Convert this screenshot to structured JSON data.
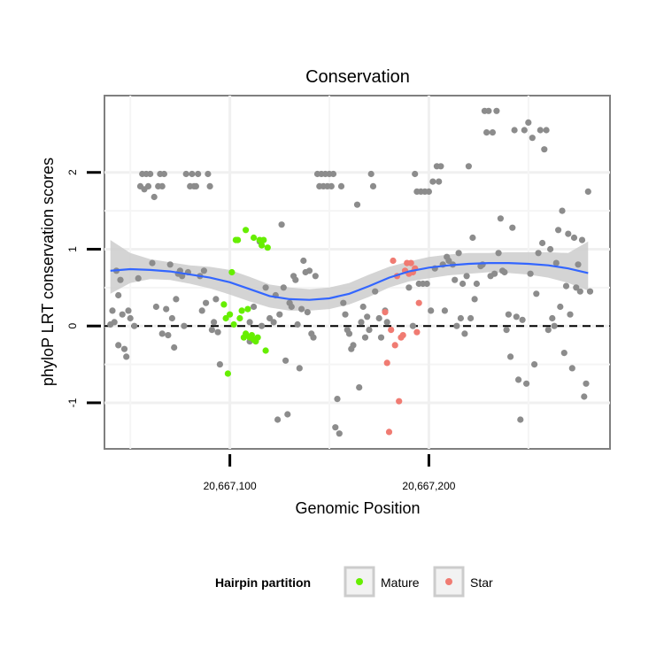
{
  "chart_data": {
    "type": "scatter",
    "title": "Conservation",
    "xlabel": "Genomic Position",
    "ylabel": "phyloP LRT conservation scores",
    "xlim": [
      20667037,
      20667291
    ],
    "ylim": [
      -1.6,
      3.0
    ],
    "x_ticks": [
      {
        "value": 20667100,
        "label": "20,667,100"
      },
      {
        "value": 20667200,
        "label": "20,667,200"
      }
    ],
    "y_ticks": [
      {
        "value": -1,
        "label": "-1"
      },
      {
        "value": 0,
        "label": "0"
      },
      {
        "value": 1,
        "label": "1"
      },
      {
        "value": 2,
        "label": "2"
      }
    ],
    "reference_line": {
      "y": 0,
      "style": "dashed"
    },
    "grid": true,
    "legend": {
      "title": "Hairpin partition",
      "position": "bottom",
      "entries": [
        {
          "label": "Mature",
          "color": "#66ee00"
        },
        {
          "label": "Star",
          "color": "#f07b72"
        }
      ]
    },
    "colors": {
      "other": "#8c8c8c",
      "mature": "#66ee00",
      "star": "#f07b72",
      "smooth": "#3366ff",
      "band": "#cccccc"
    },
    "series": [
      {
        "group": "other",
        "points": [
          [
            20667040,
            0.02
          ],
          [
            20667041,
            0.2
          ],
          [
            20667042,
            0.05
          ],
          [
            20667043,
            0.72
          ],
          [
            20667044,
            -0.25
          ],
          [
            20667044,
            0.4
          ],
          [
            20667045,
            0.6
          ],
          [
            20667046,
            0.15
          ],
          [
            20667047,
            -0.3
          ],
          [
            20667048,
            -0.4
          ],
          [
            20667049,
            0.2
          ],
          [
            20667050,
            0.1
          ],
          [
            20667052,
            0.0
          ],
          [
            20667054,
            0.62
          ],
          [
            20667055,
            1.82
          ],
          [
            20667056,
            1.98
          ],
          [
            20667057,
            1.78
          ],
          [
            20667058,
            1.98
          ],
          [
            20667059,
            1.82
          ],
          [
            20667060,
            1.98
          ],
          [
            20667061,
            0.82
          ],
          [
            20667062,
            1.68
          ],
          [
            20667063,
            0.25
          ],
          [
            20667064,
            1.82
          ],
          [
            20667065,
            1.98
          ],
          [
            20667066,
            1.82
          ],
          [
            20667066,
            -0.1
          ],
          [
            20667067,
            1.98
          ],
          [
            20667068,
            0.22
          ],
          [
            20667069,
            -0.12
          ],
          [
            20667070,
            0.8
          ],
          [
            20667071,
            0.1
          ],
          [
            20667072,
            -0.28
          ],
          [
            20667073,
            0.35
          ],
          [
            20667074,
            0.68
          ],
          [
            20667075,
            0.72
          ],
          [
            20667076,
            0.65
          ],
          [
            20667077,
            0.0
          ],
          [
            20667078,
            1.98
          ],
          [
            20667079,
            0.7
          ],
          [
            20667080,
            1.82
          ],
          [
            20667081,
            1.98
          ],
          [
            20667082,
            1.82
          ],
          [
            20667083,
            1.82
          ],
          [
            20667084,
            1.98
          ],
          [
            20667085,
            0.65
          ],
          [
            20667086,
            0.2
          ],
          [
            20667087,
            0.72
          ],
          [
            20667088,
            0.3
          ],
          [
            20667089,
            1.98
          ],
          [
            20667090,
            1.82
          ],
          [
            20667091,
            -0.05
          ],
          [
            20667092,
            0.05
          ],
          [
            20667093,
            0.35
          ],
          [
            20667094,
            -0.08
          ],
          [
            20667095,
            -0.5
          ],
          [
            20667110,
            -0.2
          ],
          [
            20667115,
            1.1
          ],
          [
            20667116,
            0.0
          ],
          [
            20667118,
            0.5
          ],
          [
            20667120,
            0.1
          ],
          [
            20667122,
            0.05
          ],
          [
            20667123,
            0.4
          ],
          [
            20667124,
            -1.22
          ],
          [
            20667125,
            0.15
          ],
          [
            20667126,
            1.32
          ],
          [
            20667127,
            0.5
          ],
          [
            20667128,
            -0.45
          ],
          [
            20667129,
            -1.15
          ],
          [
            20667130,
            0.3
          ],
          [
            20667131,
            0.25
          ],
          [
            20667132,
            0.65
          ],
          [
            20667133,
            0.6
          ],
          [
            20667134,
            0.02
          ],
          [
            20667135,
            -0.55
          ],
          [
            20667136,
            0.22
          ],
          [
            20667137,
            0.85
          ],
          [
            20667138,
            0.7
          ],
          [
            20667139,
            0.18
          ],
          [
            20667140,
            0.72
          ],
          [
            20667141,
            -0.1
          ],
          [
            20667142,
            -0.15
          ],
          [
            20667143,
            0.65
          ],
          [
            20667144,
            1.98
          ],
          [
            20667145,
            1.82
          ],
          [
            20667146,
            1.98
          ],
          [
            20667147,
            1.82
          ],
          [
            20667148,
            1.98
          ],
          [
            20667149,
            1.82
          ],
          [
            20667150,
            1.98
          ],
          [
            20667151,
            1.82
          ],
          [
            20667152,
            1.98
          ],
          [
            20667153,
            -1.32
          ],
          [
            20667154,
            -0.95
          ],
          [
            20667155,
            -1.4
          ],
          [
            20667156,
            1.82
          ],
          [
            20667157,
            0.3
          ],
          [
            20667158,
            0.15
          ],
          [
            20667159,
            -0.05
          ],
          [
            20667160,
            -0.1
          ],
          [
            20667161,
            -0.3
          ],
          [
            20667162,
            -0.25
          ],
          [
            20667164,
            1.58
          ],
          [
            20667165,
            -0.8
          ],
          [
            20667166,
            0.05
          ],
          [
            20667167,
            0.25
          ],
          [
            20667168,
            -0.15
          ],
          [
            20667169,
            0.12
          ],
          [
            20667170,
            -0.05
          ],
          [
            20667171,
            1.98
          ],
          [
            20667172,
            1.82
          ],
          [
            20667173,
            0.45
          ],
          [
            20667175,
            0.1
          ],
          [
            20667176,
            -0.15
          ],
          [
            20667178,
            0.2
          ],
          [
            20667179,
            0.05
          ],
          [
            20667190,
            0.5
          ],
          [
            20667192,
            0.0
          ],
          [
            20667193,
            1.98
          ],
          [
            20667194,
            1.75
          ],
          [
            20667195,
            0.55
          ],
          [
            20667196,
            1.75
          ],
          [
            20667197,
            0.55
          ],
          [
            20667198,
            1.75
          ],
          [
            20667199,
            0.55
          ],
          [
            20667200,
            1.75
          ],
          [
            20667201,
            0.2
          ],
          [
            20667202,
            1.88
          ],
          [
            20667203,
            0.75
          ],
          [
            20667204,
            2.08
          ],
          [
            20667205,
            1.88
          ],
          [
            20667206,
            2.08
          ],
          [
            20667207,
            0.8
          ],
          [
            20667208,
            0.2
          ],
          [
            20667209,
            0.9
          ],
          [
            20667210,
            0.85
          ],
          [
            20667212,
            0.8
          ],
          [
            20667213,
            0.6
          ],
          [
            20667214,
            0.0
          ],
          [
            20667215,
            0.95
          ],
          [
            20667216,
            0.1
          ],
          [
            20667217,
            0.55
          ],
          [
            20667218,
            -0.1
          ],
          [
            20667219,
            0.65
          ],
          [
            20667220,
            2.08
          ],
          [
            20667221,
            0.1
          ],
          [
            20667222,
            1.15
          ],
          [
            20667223,
            0.35
          ],
          [
            20667224,
            0.55
          ],
          [
            20667226,
            0.78
          ],
          [
            20667227,
            0.8
          ],
          [
            20667228,
            2.8
          ],
          [
            20667229,
            2.52
          ],
          [
            20667230,
            2.8
          ],
          [
            20667231,
            0.65
          ],
          [
            20667232,
            2.52
          ],
          [
            20667233,
            0.68
          ],
          [
            20667234,
            2.8
          ],
          [
            20667235,
            0.95
          ],
          [
            20667236,
            1.4
          ],
          [
            20667237,
            0.72
          ],
          [
            20667238,
            0.7
          ],
          [
            20667239,
            -0.05
          ],
          [
            20667240,
            0.15
          ],
          [
            20667241,
            -0.4
          ],
          [
            20667242,
            1.28
          ],
          [
            20667243,
            2.55
          ],
          [
            20667244,
            0.12
          ],
          [
            20667245,
            -0.7
          ],
          [
            20667246,
            -1.22
          ],
          [
            20667247,
            0.08
          ],
          [
            20667248,
            2.55
          ],
          [
            20667249,
            -0.75
          ],
          [
            20667250,
            2.65
          ],
          [
            20667251,
            0.68
          ],
          [
            20667252,
            2.45
          ],
          [
            20667253,
            -0.5
          ],
          [
            20667254,
            0.42
          ],
          [
            20667255,
            0.95
          ],
          [
            20667256,
            2.55
          ],
          [
            20667257,
            1.08
          ],
          [
            20667258,
            2.3
          ],
          [
            20667259,
            2.55
          ],
          [
            20667260,
            -0.05
          ],
          [
            20667261,
            1.0
          ],
          [
            20667262,
            0.1
          ],
          [
            20667263,
            0.0
          ],
          [
            20667264,
            0.82
          ],
          [
            20667265,
            1.25
          ],
          [
            20667266,
            0.25
          ],
          [
            20667267,
            1.5
          ],
          [
            20667268,
            -0.35
          ],
          [
            20667269,
            0.52
          ],
          [
            20667270,
            1.2
          ],
          [
            20667271,
            0.15
          ],
          [
            20667272,
            -0.55
          ],
          [
            20667273,
            1.15
          ],
          [
            20667274,
            0.5
          ],
          [
            20667275,
            0.8
          ],
          [
            20667276,
            0.45
          ],
          [
            20667277,
            1.12
          ],
          [
            20667278,
            -0.92
          ],
          [
            20667279,
            -0.75
          ],
          [
            20667280,
            1.75
          ],
          [
            20667281,
            0.45
          ],
          [
            20667110,
            0.05
          ],
          [
            20667112,
            0.25
          ]
        ]
      },
      {
        "group": "mature",
        "points": [
          [
            20667097,
            0.28
          ],
          [
            20667098,
            0.1
          ],
          [
            20667099,
            -0.62
          ],
          [
            20667100,
            0.15
          ],
          [
            20667101,
            0.7
          ],
          [
            20667102,
            0.02
          ],
          [
            20667103,
            1.12
          ],
          [
            20667104,
            1.12
          ],
          [
            20667105,
            0.1
          ],
          [
            20667106,
            0.2
          ],
          [
            20667107,
            -0.15
          ],
          [
            20667108,
            1.25
          ],
          [
            20667109,
            0.22
          ],
          [
            20667110,
            -0.15
          ],
          [
            20667111,
            -0.12
          ],
          [
            20667112,
            1.15
          ],
          [
            20667113,
            -0.2
          ],
          [
            20667114,
            -0.15
          ],
          [
            20667115,
            1.12
          ],
          [
            20667116,
            1.05
          ],
          [
            20667117,
            1.12
          ],
          [
            20667118,
            -0.32
          ],
          [
            20667119,
            1.02
          ],
          [
            20667108,
            -0.1
          ],
          [
            20667112,
            -0.18
          ]
        ]
      },
      {
        "group": "star",
        "points": [
          [
            20667178,
            0.18
          ],
          [
            20667179,
            -0.48
          ],
          [
            20667180,
            -1.38
          ],
          [
            20667181,
            -0.05
          ],
          [
            20667182,
            0.85
          ],
          [
            20667183,
            -0.25
          ],
          [
            20667184,
            0.65
          ],
          [
            20667185,
            -0.98
          ],
          [
            20667186,
            -0.15
          ],
          [
            20667187,
            -0.12
          ],
          [
            20667188,
            0.72
          ],
          [
            20667189,
            0.82
          ],
          [
            20667190,
            0.68
          ],
          [
            20667191,
            0.82
          ],
          [
            20667192,
            0.7
          ],
          [
            20667193,
            0.75
          ],
          [
            20667194,
            -0.08
          ],
          [
            20667195,
            0.3
          ]
        ]
      }
    ],
    "smooth": {
      "x": [
        20667040,
        20667050,
        20667060,
        20667070,
        20667080,
        20667090,
        20667100,
        20667110,
        20667120,
        20667130,
        20667140,
        20667150,
        20667160,
        20667170,
        20667180,
        20667190,
        20667200,
        20667210,
        20667220,
        20667230,
        20667240,
        20667250,
        20667260,
        20667270,
        20667280
      ],
      "y": [
        0.72,
        0.74,
        0.73,
        0.71,
        0.67,
        0.63,
        0.57,
        0.48,
        0.39,
        0.35,
        0.34,
        0.36,
        0.42,
        0.52,
        0.63,
        0.71,
        0.76,
        0.79,
        0.81,
        0.82,
        0.82,
        0.81,
        0.79,
        0.75,
        0.69
      ],
      "lower": [
        0.42,
        0.56,
        0.61,
        0.6,
        0.55,
        0.49,
        0.41,
        0.32,
        0.24,
        0.2,
        0.2,
        0.22,
        0.28,
        0.38,
        0.5,
        0.58,
        0.62,
        0.66,
        0.68,
        0.7,
        0.69,
        0.67,
        0.63,
        0.56,
        0.46
      ],
      "upper": [
        1.12,
        0.95,
        0.87,
        0.83,
        0.79,
        0.77,
        0.73,
        0.64,
        0.54,
        0.5,
        0.48,
        0.5,
        0.56,
        0.67,
        0.77,
        0.84,
        0.9,
        0.93,
        0.95,
        0.95,
        0.96,
        0.96,
        0.96,
        0.95,
        1.1
      ]
    }
  }
}
